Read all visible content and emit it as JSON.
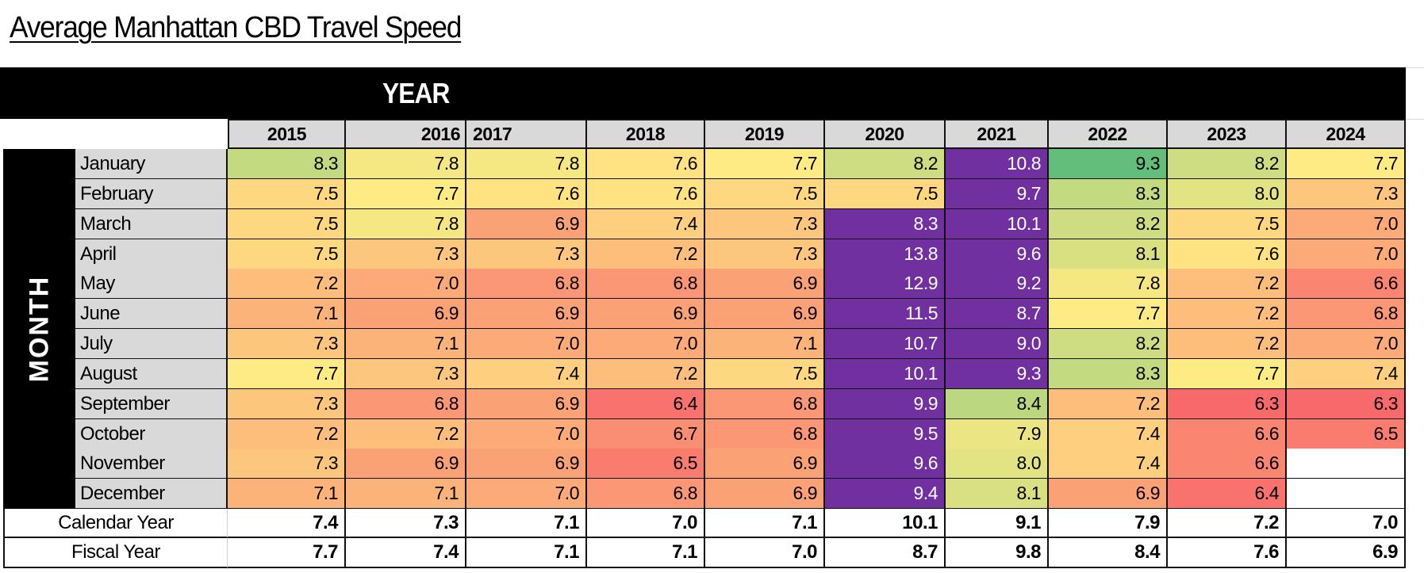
{
  "title": "Average Manhattan CBD Travel Speed",
  "year_header": "YEAR",
  "month_header": "MONTH",
  "colors": {
    "high": "#63be7b",
    "mid": "#ffeb84",
    "low": "#f8696b",
    "highlight": "#7030a0",
    "header_band": "#000000",
    "label_bg": "#d9d9d9"
  },
  "chart_data": {
    "type": "heatmap",
    "title": "Average Manhattan CBD Travel Speed",
    "xlabel": "YEAR",
    "ylabel": "MONTH",
    "color_scale": {
      "min_value": 6.3,
      "mid_value": 7.7,
      "max_value": 9.3,
      "min_color": "red",
      "mid_color": "yellow",
      "max_color": "green"
    },
    "columns": [
      "2015",
      "2016",
      "2017",
      "2018",
      "2019",
      "2020",
      "2021",
      "2022",
      "2023",
      "2024"
    ],
    "rows": [
      "January",
      "February",
      "March",
      "April",
      "May",
      "June",
      "July",
      "August",
      "September",
      "October",
      "November",
      "December"
    ],
    "values": [
      [
        8.3,
        7.8,
        7.8,
        7.6,
        7.7,
        8.2,
        10.8,
        9.3,
        8.2,
        7.7
      ],
      [
        7.5,
        7.7,
        7.6,
        7.6,
        7.5,
        7.5,
        9.7,
        8.3,
        8.0,
        7.3
      ],
      [
        7.5,
        7.8,
        6.9,
        7.4,
        7.3,
        8.3,
        10.1,
        8.2,
        7.5,
        7.0
      ],
      [
        7.5,
        7.3,
        7.3,
        7.2,
        7.3,
        13.8,
        9.6,
        8.1,
        7.6,
        7.0
      ],
      [
        7.2,
        7.0,
        6.8,
        6.8,
        6.9,
        12.9,
        9.2,
        7.8,
        7.2,
        6.6
      ],
      [
        7.1,
        6.9,
        6.9,
        6.9,
        6.9,
        11.5,
        8.7,
        7.7,
        7.2,
        6.8
      ],
      [
        7.3,
        7.1,
        7.0,
        7.0,
        7.1,
        10.7,
        9.0,
        8.2,
        7.2,
        7.0
      ],
      [
        7.7,
        7.3,
        7.4,
        7.2,
        7.5,
        10.1,
        9.3,
        8.3,
        7.7,
        7.4
      ],
      [
        7.3,
        6.8,
        6.9,
        6.4,
        6.8,
        9.9,
        8.4,
        7.2,
        6.3,
        6.3
      ],
      [
        7.2,
        7.2,
        7.0,
        6.7,
        6.8,
        9.5,
        7.9,
        7.4,
        6.6,
        6.5
      ],
      [
        7.3,
        6.9,
        6.9,
        6.5,
        6.9,
        9.6,
        8.0,
        7.4,
        6.6,
        null
      ],
      [
        7.1,
        7.1,
        7.0,
        6.8,
        6.9,
        9.4,
        8.1,
        6.9,
        6.4,
        null
      ]
    ],
    "highlighted": [
      [
        false,
        false,
        false,
        false,
        false,
        false,
        true,
        false,
        false,
        false
      ],
      [
        false,
        false,
        false,
        false,
        false,
        false,
        true,
        false,
        false,
        false
      ],
      [
        false,
        false,
        false,
        false,
        false,
        true,
        true,
        false,
        false,
        false
      ],
      [
        false,
        false,
        false,
        false,
        false,
        true,
        true,
        false,
        false,
        false
      ],
      [
        false,
        false,
        false,
        false,
        false,
        true,
        true,
        false,
        false,
        false
      ],
      [
        false,
        false,
        false,
        false,
        false,
        true,
        true,
        false,
        false,
        false
      ],
      [
        false,
        false,
        false,
        false,
        false,
        true,
        true,
        false,
        false,
        false
      ],
      [
        false,
        false,
        false,
        false,
        false,
        true,
        true,
        false,
        false,
        false
      ],
      [
        false,
        false,
        false,
        false,
        false,
        true,
        false,
        false,
        false,
        false
      ],
      [
        false,
        false,
        false,
        false,
        false,
        true,
        false,
        false,
        false,
        false
      ],
      [
        false,
        false,
        false,
        false,
        false,
        true,
        false,
        false,
        false,
        false
      ],
      [
        false,
        false,
        false,
        false,
        false,
        true,
        false,
        false,
        false,
        false
      ]
    ],
    "summary_rows": [
      {
        "label": "Calendar Year",
        "values": [
          7.4,
          7.3,
          7.1,
          7.0,
          7.1,
          10.1,
          9.1,
          7.9,
          7.2,
          7.0
        ]
      },
      {
        "label": "Fiscal Year",
        "values": [
          7.7,
          7.4,
          7.1,
          7.1,
          7.0,
          8.7,
          9.8,
          8.4,
          7.6,
          6.9
        ]
      }
    ]
  }
}
